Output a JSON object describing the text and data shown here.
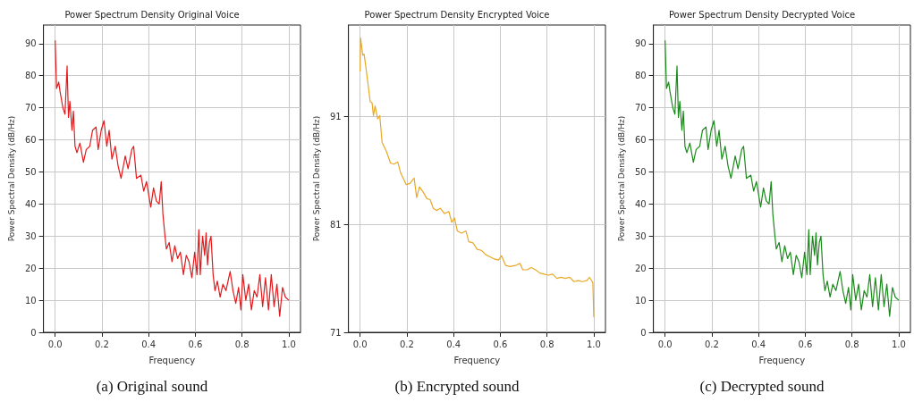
{
  "chart_data": [
    {
      "type": "line",
      "title": "Power Spectrum Density Original Voice",
      "xlabel": "Frequency",
      "ylabel": "Power Spectral Density (dB/Hz)",
      "annotations": [
        "(a) Original sound"
      ],
      "x": [
        0,
        0.006,
        0.015,
        0.021,
        0.033,
        0.042,
        0.051,
        0.057,
        0.063,
        0.072,
        0.078,
        0.085,
        0.093,
        0.106,
        0.121,
        0.133,
        0.148,
        0.16,
        0.175,
        0.184,
        0.197,
        0.209,
        0.221,
        0.231,
        0.243,
        0.257,
        0.269,
        0.282,
        0.3,
        0.312,
        0.328,
        0.336,
        0.348,
        0.367,
        0.379,
        0.391,
        0.409,
        0.421,
        0.433,
        0.445,
        0.454,
        0.461,
        0.47,
        0.476,
        0.488,
        0.5,
        0.512,
        0.524,
        0.536,
        0.549,
        0.561,
        0.573,
        0.585,
        0.597,
        0.607,
        0.615,
        0.621,
        0.631,
        0.64,
        0.646,
        0.652,
        0.66,
        0.667,
        0.676,
        0.684,
        0.694,
        0.706,
        0.718,
        0.731,
        0.749,
        0.761,
        0.773,
        0.785,
        0.795,
        0.803,
        0.816,
        0.828,
        0.84,
        0.852,
        0.864,
        0.876,
        0.888,
        0.9,
        0.913,
        0.925,
        0.937,
        0.949,
        0.961,
        0.973,
        0.985,
        1.0
      ],
      "series": [
        {
          "color": "#e31a1c",
          "values": [
            91,
            76,
            78,
            75,
            70,
            68,
            83,
            67,
            72,
            63,
            69,
            58,
            56,
            59,
            53,
            57,
            58,
            63,
            64,
            57,
            63,
            66,
            58,
            63,
            54,
            58,
            52,
            48,
            55,
            51,
            57,
            58,
            48,
            49,
            44,
            47,
            39,
            45,
            41,
            40,
            47,
            37,
            30,
            26,
            28,
            22,
            27,
            23,
            25,
            18,
            24,
            22,
            17,
            25,
            18,
            32,
            18,
            30,
            24,
            31,
            21,
            28,
            30,
            18,
            13,
            16,
            11,
            15,
            13,
            19,
            13,
            9,
            14,
            7,
            18,
            10,
            15,
            7,
            13,
            11,
            18,
            8,
            17,
            7,
            18,
            8,
            15,
            5,
            14,
            11,
            10
          ]
        }
      ],
      "xlim": [
        -0.05,
        1.05
      ],
      "xticks": [
        {
          "value": 0,
          "label": "0.0"
        },
        {
          "value": 0.2,
          "label": "0.2"
        },
        {
          "value": 0.4,
          "label": "0.4"
        },
        {
          "value": 0.6,
          "label": "0.6"
        },
        {
          "value": 0.8,
          "label": "0.8"
        },
        {
          "value": 1,
          "label": "1.0"
        }
      ],
      "ylim": [
        0,
        95.8
      ],
      "yticks": [
        0,
        10,
        20,
        30,
        40,
        50,
        60,
        70,
        80,
        90
      ],
      "grid": true,
      "marker": "none",
      "line_style": "solid"
    },
    {
      "type": "line",
      "title": "Power Spectrum Density Encrypted Voice",
      "xlabel": "Frequency",
      "ylabel": "Power Spectral Density (dB/Hz)",
      "annotations": [
        "(b) Encrypted sound"
      ],
      "x": [
        0,
        0.002,
        0.011,
        0.017,
        0.024,
        0.035,
        0.043,
        0.051,
        0.057,
        0.064,
        0.075,
        0.084,
        0.094,
        0.112,
        0.13,
        0.145,
        0.161,
        0.173,
        0.197,
        0.213,
        0.231,
        0.242,
        0.254,
        0.27,
        0.286,
        0.3,
        0.313,
        0.327,
        0.343,
        0.361,
        0.38,
        0.392,
        0.404,
        0.416,
        0.434,
        0.453,
        0.465,
        0.483,
        0.501,
        0.519,
        0.538,
        0.556,
        0.574,
        0.592,
        0.605,
        0.623,
        0.641,
        0.665,
        0.684,
        0.696,
        0.714,
        0.732,
        0.751,
        0.769,
        0.787,
        0.805,
        0.824,
        0.842,
        0.86,
        0.878,
        0.897,
        0.915,
        0.933,
        0.951,
        0.97,
        0.982,
        0.996,
        1.0
      ],
      "series": [
        {
          "color": "#e8a825",
          "values": [
            95.2,
            98.3,
            96.7,
            96.8,
            95.7,
            93.8,
            92.4,
            92.3,
            91.1,
            92.0,
            90.8,
            91.1,
            88.6,
            87.8,
            86.7,
            86.6,
            86.8,
            85.8,
            84.7,
            84.8,
            85.3,
            83.5,
            84.5,
            84.0,
            83.4,
            83.3,
            82.5,
            82.3,
            82.5,
            82.0,
            82.2,
            81.2,
            81.6,
            80.4,
            80.2,
            80.4,
            79.4,
            79.3,
            78.7,
            78.6,
            78.2,
            78.0,
            77.8,
            77.7,
            78.1,
            77.2,
            77.1,
            77.2,
            77.4,
            76.8,
            76.8,
            77.0,
            76.8,
            76.5,
            76.4,
            76.3,
            76.4,
            76.0,
            76.1,
            76.0,
            76.1,
            75.7,
            75.8,
            75.7,
            75.8,
            76.1,
            75.6,
            72.4
          ]
        }
      ],
      "xlim": [
        -0.05,
        1.05
      ],
      "xticks": [
        {
          "value": 0,
          "label": "0.0"
        },
        {
          "value": 0.2,
          "label": "0.2"
        },
        {
          "value": 0.4,
          "label": "0.4"
        },
        {
          "value": 0.6,
          "label": "0.6"
        },
        {
          "value": 0.8,
          "label": "0.8"
        },
        {
          "value": 1,
          "label": "1.0"
        }
      ],
      "ylim": [
        71,
        99.5
      ],
      "yticks": [
        71,
        81,
        91
      ],
      "grid": true,
      "marker": "none",
      "line_style": "solid"
    },
    {
      "type": "line",
      "title": "Power Spectrum Density Decrypted Voice",
      "xlabel": "Frequency",
      "ylabel": "Power Spectral Density (dB/Hz)",
      "annotations": [
        "(c) Decrypted sound"
      ],
      "x": [
        0,
        0.006,
        0.015,
        0.021,
        0.033,
        0.042,
        0.051,
        0.057,
        0.063,
        0.072,
        0.078,
        0.085,
        0.093,
        0.106,
        0.121,
        0.133,
        0.148,
        0.16,
        0.175,
        0.184,
        0.197,
        0.209,
        0.221,
        0.231,
        0.243,
        0.257,
        0.269,
        0.282,
        0.3,
        0.312,
        0.328,
        0.336,
        0.348,
        0.367,
        0.379,
        0.391,
        0.409,
        0.421,
        0.433,
        0.445,
        0.454,
        0.461,
        0.47,
        0.476,
        0.488,
        0.5,
        0.512,
        0.524,
        0.536,
        0.549,
        0.561,
        0.573,
        0.585,
        0.597,
        0.607,
        0.615,
        0.621,
        0.631,
        0.64,
        0.646,
        0.652,
        0.66,
        0.667,
        0.676,
        0.684,
        0.694,
        0.706,
        0.718,
        0.731,
        0.749,
        0.761,
        0.773,
        0.785,
        0.795,
        0.803,
        0.816,
        0.828,
        0.84,
        0.852,
        0.864,
        0.876,
        0.888,
        0.9,
        0.913,
        0.925,
        0.937,
        0.949,
        0.961,
        0.973,
        0.985,
        1.0
      ],
      "series": [
        {
          "color": "#1a8a1a",
          "values": [
            91,
            76,
            78,
            75,
            70,
            68,
            83,
            67,
            72,
            63,
            69,
            58,
            56,
            59,
            53,
            57,
            58,
            63,
            64,
            57,
            63,
            66,
            58,
            63,
            54,
            58,
            52,
            48,
            55,
            51,
            57,
            58,
            48,
            49,
            44,
            47,
            39,
            45,
            41,
            40,
            47,
            37,
            30,
            26,
            28,
            22,
            27,
            23,
            25,
            18,
            24,
            22,
            17,
            25,
            18,
            32,
            18,
            30,
            24,
            31,
            21,
            28,
            30,
            18,
            13,
            16,
            11,
            15,
            13,
            19,
            13,
            9,
            14,
            7,
            18,
            10,
            15,
            7,
            13,
            11,
            18,
            8,
            17,
            7,
            18,
            8,
            15,
            5,
            14,
            11,
            10
          ]
        }
      ],
      "xlim": [
        -0.05,
        1.05
      ],
      "xticks": [
        {
          "value": 0,
          "label": "0.0"
        },
        {
          "value": 0.2,
          "label": "0.2"
        },
        {
          "value": 0.4,
          "label": "0.4"
        },
        {
          "value": 0.6,
          "label": "0.6"
        },
        {
          "value": 0.8,
          "label": "0.8"
        },
        {
          "value": 1,
          "label": "1.0"
        }
      ],
      "ylim": [
        0,
        95.8
      ],
      "yticks": [
        0,
        10,
        20,
        30,
        40,
        50,
        60,
        70,
        80,
        90
      ],
      "grid": true,
      "marker": "none",
      "line_style": "solid"
    }
  ]
}
